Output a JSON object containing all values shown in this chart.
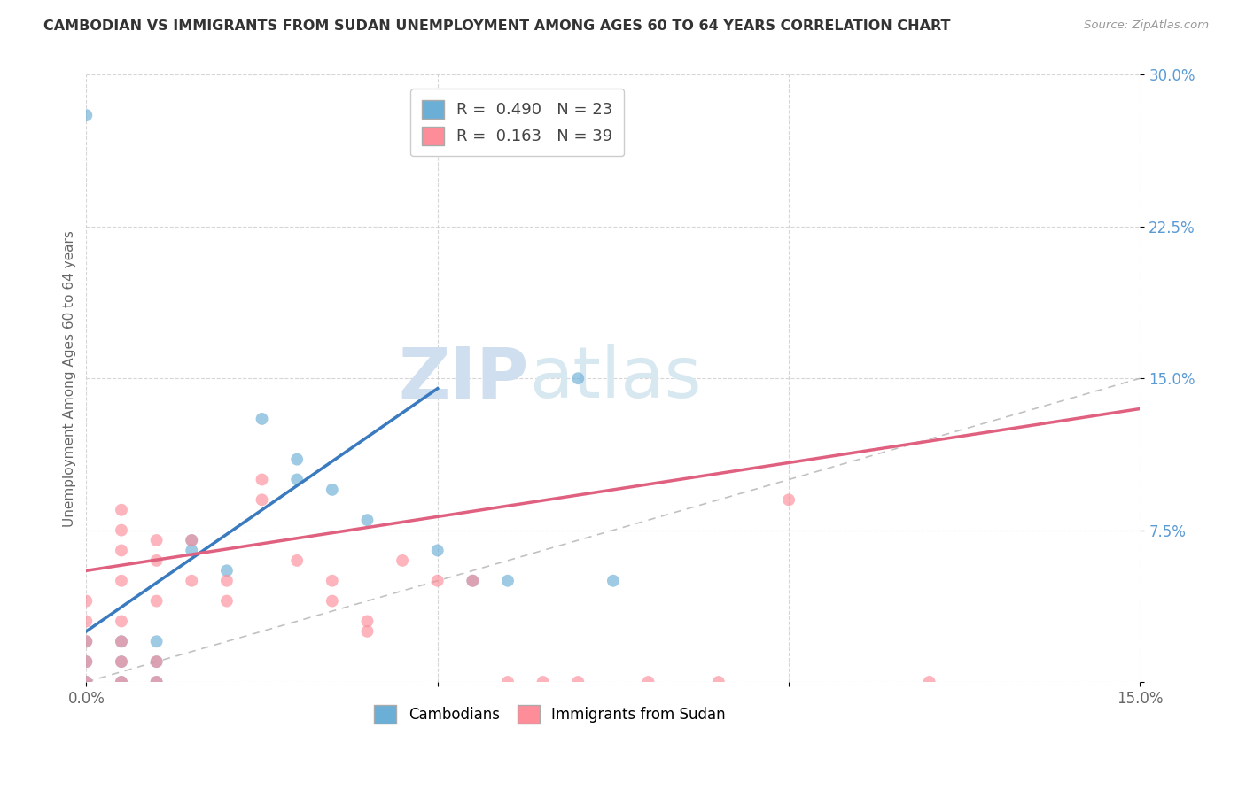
{
  "title": "CAMBODIAN VS IMMIGRANTS FROM SUDAN UNEMPLOYMENT AMONG AGES 60 TO 64 YEARS CORRELATION CHART",
  "source": "Source: ZipAtlas.com",
  "ylabel": "Unemployment Among Ages 60 to 64 years",
  "xlim": [
    0.0,
    0.15
  ],
  "ylim": [
    0.0,
    0.3
  ],
  "cambodian_color": "#6baed6",
  "sudan_color": "#fc8d99",
  "cambodian_line_color": "#3a7abf",
  "sudan_line_color": "#e06080",
  "diagonal_color": "#bbbbbb",
  "cambodian_R": 0.49,
  "cambodian_N": 23,
  "sudan_R": 0.163,
  "sudan_N": 39,
  "watermark_zip": "ZIP",
  "watermark_atlas": "atlas",
  "cambodian_points": [
    [
      0.0,
      0.02
    ],
    [
      0.0,
      0.01
    ],
    [
      0.0,
      0.0
    ],
    [
      0.005,
      0.0
    ],
    [
      0.005,
      0.01
    ],
    [
      0.005,
      0.02
    ],
    [
      0.01,
      0.0
    ],
    [
      0.01,
      0.01
    ],
    [
      0.01,
      0.02
    ],
    [
      0.015,
      0.065
    ],
    [
      0.015,
      0.07
    ],
    [
      0.02,
      0.055
    ],
    [
      0.025,
      0.13
    ],
    [
      0.03,
      0.1
    ],
    [
      0.03,
      0.11
    ],
    [
      0.035,
      0.095
    ],
    [
      0.04,
      0.08
    ],
    [
      0.05,
      0.065
    ],
    [
      0.055,
      0.05
    ],
    [
      0.06,
      0.05
    ],
    [
      0.07,
      0.15
    ],
    [
      0.075,
      0.05
    ],
    [
      0.0,
      0.28
    ]
  ],
  "sudan_points": [
    [
      0.0,
      0.0
    ],
    [
      0.0,
      0.01
    ],
    [
      0.0,
      0.02
    ],
    [
      0.0,
      0.03
    ],
    [
      0.005,
      0.0
    ],
    [
      0.005,
      0.01
    ],
    [
      0.005,
      0.02
    ],
    [
      0.005,
      0.03
    ],
    [
      0.005,
      0.05
    ],
    [
      0.005,
      0.065
    ],
    [
      0.005,
      0.075
    ],
    [
      0.01,
      0.0
    ],
    [
      0.01,
      0.01
    ],
    [
      0.01,
      0.04
    ],
    [
      0.01,
      0.06
    ],
    [
      0.01,
      0.07
    ],
    [
      0.015,
      0.05
    ],
    [
      0.015,
      0.07
    ],
    [
      0.02,
      0.04
    ],
    [
      0.02,
      0.05
    ],
    [
      0.025,
      0.09
    ],
    [
      0.025,
      0.1
    ],
    [
      0.03,
      0.06
    ],
    [
      0.035,
      0.05
    ],
    [
      0.035,
      0.04
    ],
    [
      0.04,
      0.03
    ],
    [
      0.04,
      0.025
    ],
    [
      0.045,
      0.06
    ],
    [
      0.05,
      0.05
    ],
    [
      0.055,
      0.05
    ],
    [
      0.06,
      0.0
    ],
    [
      0.065,
      0.0
    ],
    [
      0.07,
      0.0
    ],
    [
      0.08,
      0.0
    ],
    [
      0.09,
      0.0
    ],
    [
      0.1,
      0.09
    ],
    [
      0.12,
      0.0
    ],
    [
      0.0,
      0.04
    ],
    [
      0.005,
      0.085
    ]
  ],
  "cam_line_x0": 0.0,
  "cam_line_x1": 0.05,
  "cam_line_y0": 0.025,
  "cam_line_y1": 0.145,
  "sud_line_x0": 0.0,
  "sud_line_x1": 0.15,
  "sud_line_y0": 0.055,
  "sud_line_y1": 0.135
}
